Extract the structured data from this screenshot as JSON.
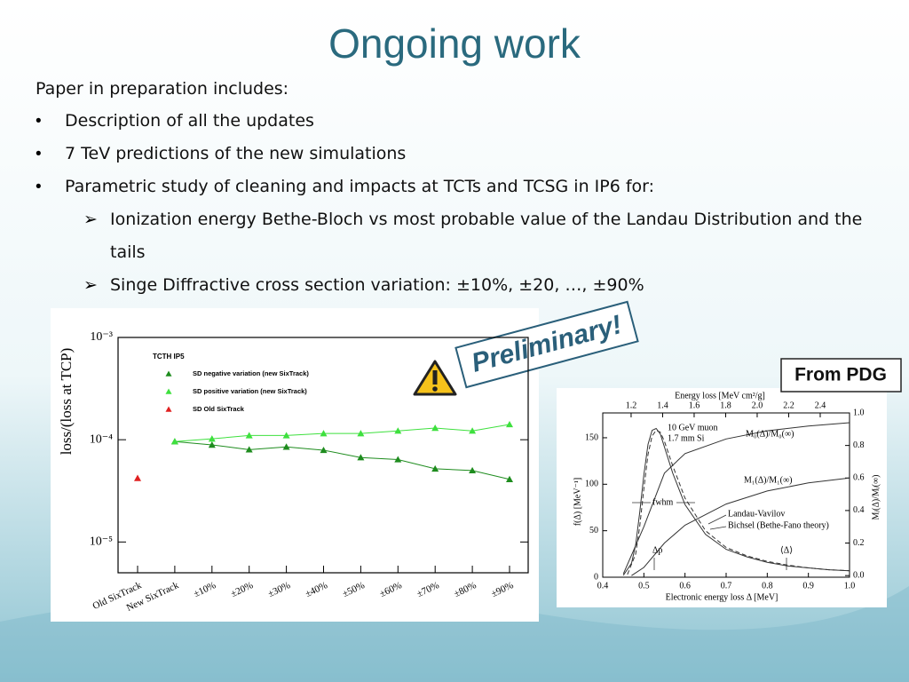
{
  "slide": {
    "title": "Ongoing work",
    "intro": "Paper in preparation includes:",
    "bullets": [
      "Description of all the updates",
      "7 TeV predictions of the new simulations",
      "Parametric study of cleaning and impacts at TCTs and TCSG in IP6 for:"
    ],
    "sub_bullets": [
      "Ionization energy Bethe-Bloch vs most probable value of the Landau Distribution and the tails",
      "Singe Diffractive cross section variation: ±10%, ±20, …, ±90%"
    ],
    "stamp": "Preliminary!",
    "source_label": "From PDG"
  },
  "chart_data": [
    {
      "type": "line",
      "ylabel": "loss/(loss at TCP)",
      "annotation": "TCTH IP5",
      "log_y": true,
      "legend": "upper-left",
      "marker": "triangle",
      "ylim": [
        5e-06,
        0.001
      ],
      "yticks": [
        {
          "value": 0.001,
          "label": "10⁻³"
        },
        {
          "value": 0.0001,
          "label": "10⁻⁴"
        },
        {
          "value": 1e-05,
          "label": "10⁻⁵"
        }
      ],
      "categories": [
        "Old SixTrack",
        "New SixTrack",
        "±10%",
        "±20%",
        "±30%",
        "±40%",
        "±50%",
        "±60%",
        "±70%",
        "±80%",
        "±90%"
      ],
      "series": [
        {
          "name": "SD negative variation (new SixTrack)",
          "color": "#1e8c1e",
          "values": [
            null,
            9.6e-05,
            8.9e-05,
            8e-05,
            8.5e-05,
            7.9e-05,
            6.7e-05,
            6.4e-05,
            5.2e-05,
            5e-05,
            4.1e-05
          ]
        },
        {
          "name": "SD positive variation (new SixTrack)",
          "color": "#3ee03e",
          "values": [
            null,
            9.6e-05,
            0.000102,
            0.00011,
            0.00011,
            0.000115,
            0.000115,
            0.000122,
            0.00013,
            0.000122,
            0.000141
          ]
        },
        {
          "name": "SD Old SixTrack",
          "color": "#e02020",
          "values": [
            4.2e-05,
            null,
            null,
            null,
            null,
            null,
            null,
            null,
            null,
            null,
            null
          ]
        }
      ]
    },
    {
      "type": "line",
      "xlabel": "Electronic energy loss Δ [MeV]",
      "x2label": "Energy loss [MeV cm²/g]",
      "ylabel": "f(Δ) [MeV⁻¹]",
      "y2label": "Mⱼ(Δ)/Mⱼ(∞)",
      "xlim": [
        0.4,
        1.0
      ],
      "xticks": [
        0.4,
        0.5,
        0.6,
        0.7,
        0.8,
        0.9,
        {
          "value": 1,
          "label": "1.0"
        }
      ],
      "x2lim": [
        1.02,
        2.586
      ],
      "x2ticks": [
        1.2,
        1.4,
        1.6,
        1.8,
        {
          "value": 2,
          "label": "2.0"
        },
        2.2,
        2.4
      ],
      "ylim": [
        0,
        176.7
      ],
      "yticks": [
        0,
        50,
        100,
        150
      ],
      "y2lim": [
        -0.01,
        1.0
      ],
      "y2ticks": [
        {
          "value": 0,
          "label": "0.0"
        },
        0.2,
        0.4,
        0.6,
        0.8,
        {
          "value": 1,
          "label": "1.0"
        }
      ],
      "annotations": [
        "10 GeV muon",
        "1.7 mm Si",
        "M₀(Δ)/M₀(∞)",
        "M₁(Δ)/M₁(∞)",
        "fwhm",
        "Landau-Vavilov",
        "Bichsel (Bethe-Fano theory)",
        "Δp",
        "⟨Δ⟩"
      ],
      "series": [
        {
          "color": "#333333",
          "dash": false,
          "x": [
            0.45,
            0.47,
            0.48,
            0.49,
            0.5,
            0.51,
            0.52,
            0.53,
            0.54,
            0.55,
            0.57,
            0.6,
            0.65,
            0.7,
            0.75,
            0.8,
            0.85,
            0.9,
            0.95,
            1.0
          ],
          "values": [
            2,
            15,
            35,
            70,
            110,
            143,
            158,
            160,
            154,
            140,
            112,
            78,
            46,
            30,
            22,
            16,
            12,
            10,
            8,
            7
          ]
        },
        {
          "color": "#333333",
          "dash": true,
          "x": [
            0.46,
            0.48,
            0.49,
            0.5,
            0.51,
            0.52,
            0.53,
            0.54,
            0.55,
            0.57,
            0.6,
            0.65,
            0.7,
            0.75,
            0.8,
            0.85,
            0.9,
            0.95,
            1.0
          ],
          "values": [
            3,
            25,
            55,
            95,
            132,
            152,
            158,
            156,
            146,
            120,
            85,
            50,
            32,
            23,
            17,
            13,
            10,
            8,
            7
          ]
        },
        {
          "color": "#333333",
          "dash": false,
          "axis": "y2",
          "x": [
            0.45,
            0.5,
            0.55,
            0.6,
            0.7,
            0.8,
            0.9,
            1.0
          ],
          "values": [
            0.01,
            0.3,
            0.63,
            0.75,
            0.84,
            0.89,
            0.92,
            0.94
          ]
        },
        {
          "color": "#333333",
          "dash": false,
          "axis": "y2",
          "x": [
            0.47,
            0.5,
            0.55,
            0.6,
            0.7,
            0.8,
            0.9,
            1.0
          ],
          "values": [
            0,
            0.05,
            0.2,
            0.31,
            0.44,
            0.52,
            0.57,
            0.6
          ]
        }
      ]
    }
  ]
}
